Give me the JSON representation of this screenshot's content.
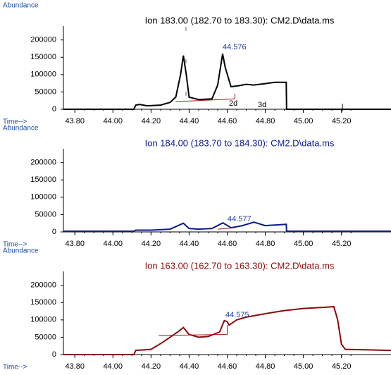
{
  "chart_data": [
    {
      "type": "line",
      "title": "Ion 183.00 (182.70 to 183.30): CM2.D\\data.ms",
      "y_label": "Abundance",
      "x_label": "Time-->",
      "peak_label": "44.576",
      "annotations": [
        "2d",
        "3d"
      ],
      "xlim": [
        43.74,
        45.46
      ],
      "ylim": [
        0,
        240000
      ],
      "xticks": [
        {
          "value": 43.8,
          "label": "43.80"
        },
        {
          "value": 44.0,
          "label": "44.00"
        },
        {
          "value": 44.2,
          "label": "44.20"
        },
        {
          "value": 44.4,
          "label": "44.40"
        },
        {
          "value": 44.6,
          "label": "44.60"
        },
        {
          "value": 44.8,
          "label": "44.80"
        },
        {
          "value": 45.0,
          "label": "45.00"
        },
        {
          "value": 45.2,
          "label": "45.20"
        }
      ],
      "yticks": [
        0,
        50000,
        100000,
        150000,
        200000
      ],
      "series": [
        {
          "color": "#000000",
          "x": [
            43.74,
            44.11,
            44.12,
            44.14,
            44.18,
            44.25,
            44.3,
            44.33,
            44.355,
            44.37,
            44.385,
            44.4,
            44.45,
            44.52,
            44.55,
            44.576,
            44.59,
            44.62,
            44.66,
            44.7,
            44.74,
            44.8,
            44.85,
            44.91,
            44.912,
            45.46
          ],
          "values": [
            0,
            0,
            12000,
            14000,
            10000,
            12000,
            20000,
            35000,
            100000,
            155000,
            100000,
            35000,
            28000,
            30000,
            70000,
            160000,
            120000,
            65000,
            68000,
            72000,
            70000,
            74000,
            78000,
            78000,
            0,
            0
          ]
        },
        {
          "color": "#a01818",
          "x": [
            44.33,
            44.64,
            44.64
          ],
          "values": [
            22000,
            30000,
            45000
          ]
        }
      ]
    },
    {
      "type": "line",
      "title": "Ion 184.00 (183.70 to 184.30): CM2.D\\data.ms",
      "y_label": "Abundance",
      "x_label": "Time-->",
      "peak_label": "44.577",
      "xlim": [
        43.74,
        45.46
      ],
      "ylim": [
        0,
        240000
      ],
      "xticks": [
        {
          "value": 43.8,
          "label": "43.80"
        },
        {
          "value": 44.0,
          "label": "44.00"
        },
        {
          "value": 44.2,
          "label": "44.20"
        },
        {
          "value": 44.4,
          "label": "44.40"
        },
        {
          "value": 44.6,
          "label": "44.60"
        },
        {
          "value": 44.8,
          "label": "44.80"
        },
        {
          "value": 45.0,
          "label": "45.00"
        },
        {
          "value": 45.2,
          "label": "45.20"
        }
      ],
      "yticks": [
        0,
        50000,
        100000,
        150000,
        200000
      ],
      "series": [
        {
          "color": "#0a1a8c",
          "x": [
            43.74,
            44.11,
            44.12,
            44.2,
            44.3,
            44.37,
            44.4,
            44.45,
            44.52,
            44.577,
            44.62,
            44.68,
            44.74,
            44.8,
            44.85,
            44.91,
            44.912,
            45.46
          ],
          "values": [
            2000,
            2000,
            5000,
            5000,
            8000,
            25000,
            10000,
            8000,
            10000,
            26000,
            12000,
            18000,
            28000,
            18000,
            20000,
            22000,
            2000,
            2000
          ]
        },
        {
          "color": "#a01818",
          "x": [
            44.55,
            44.64
          ],
          "values": [
            8000,
            12000
          ]
        }
      ]
    },
    {
      "type": "line",
      "title": "Ion 163.00 (162.70 to 163.30): CM2.D\\data.ms",
      "y_label": "Abundance",
      "x_label": "Time-->",
      "peak_label": "44.575",
      "xlim": [
        43.74,
        45.46
      ],
      "ylim": [
        0,
        240000
      ],
      "xticks": [
        {
          "value": 43.8,
          "label": "43.80"
        },
        {
          "value": 44.0,
          "label": "44.00"
        },
        {
          "value": 44.2,
          "label": "44.20"
        },
        {
          "value": 44.4,
          "label": "44.40"
        },
        {
          "value": 44.6,
          "label": "44.60"
        },
        {
          "value": 44.8,
          "label": "44.80"
        },
        {
          "value": 45.0,
          "label": "45.00"
        },
        {
          "value": 45.2,
          "label": "45.20"
        }
      ],
      "yticks": [
        0,
        50000,
        100000,
        150000,
        200000
      ],
      "series": [
        {
          "color": "#8b0a0a",
          "x": [
            43.74,
            44.11,
            44.12,
            44.2,
            44.26,
            44.3,
            44.34,
            44.37,
            44.4,
            44.45,
            44.5,
            44.56,
            44.585,
            44.6,
            44.61,
            44.65,
            44.7,
            44.8,
            44.9,
            45.0,
            45.1,
            45.16,
            45.18,
            45.2,
            45.22,
            45.46
          ],
          "values": [
            0,
            0,
            12000,
            15000,
            35000,
            50000,
            65000,
            78000,
            58000,
            50000,
            52000,
            65000,
            98000,
            95000,
            85000,
            100000,
            108000,
            118000,
            127000,
            133000,
            136000,
            138000,
            100000,
            30000,
            15000,
            12000
          ]
        },
        {
          "color": "#a01818",
          "x": [
            44.24,
            44.6,
            44.6
          ],
          "values": [
            55000,
            58000,
            85000
          ]
        }
      ]
    }
  ]
}
